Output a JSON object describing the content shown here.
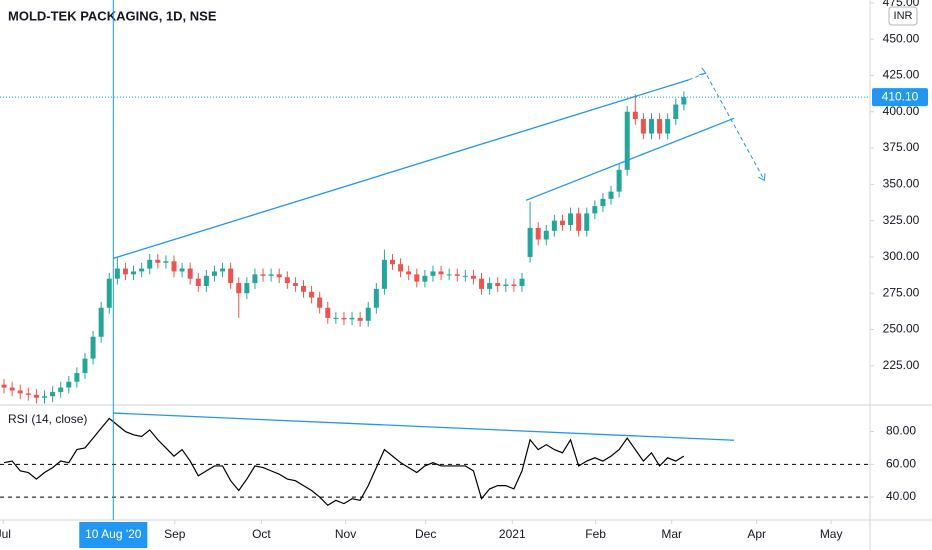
{
  "chart_data": [
    {
      "type": "candlestick",
      "title": "MOLD-TEK PACKAGING, 1D, NSE",
      "currency": "INR",
      "up_color": "#26a69a",
      "down_color": "#ef5350",
      "line_color": "#2196f3",
      "open": [
        212,
        210,
        208,
        206,
        205,
        203,
        204,
        207,
        210,
        214,
        220,
        230,
        245,
        265,
        285,
        292,
        288,
        290,
        292,
        298,
        296,
        297,
        290,
        292,
        285,
        280,
        287,
        290,
        292,
        282,
        275,
        282,
        288,
        287,
        288,
        286,
        282,
        280,
        276,
        272,
        265,
        258,
        258,
        257,
        258,
        256,
        265,
        278,
        298,
        295,
        290,
        288,
        283,
        287,
        290,
        288,
        288,
        287,
        287,
        285,
        278,
        282,
        280,
        281,
        280,
        300,
        320,
        312,
        318,
        325,
        322,
        330,
        318,
        330,
        335,
        340,
        345,
        360,
        400,
        395,
        385,
        395,
        385,
        395,
        405
      ],
      "high": [
        216,
        214,
        212,
        210,
        209,
        208,
        211,
        214,
        218,
        224,
        234,
        249,
        269,
        289,
        300,
        296,
        294,
        296,
        302,
        302,
        301,
        301,
        296,
        296,
        289,
        291,
        294,
        296,
        296,
        286,
        286,
        292,
        292,
        292,
        292,
        290,
        286,
        284,
        280,
        276,
        269,
        262,
        262,
        262,
        262,
        269,
        282,
        305,
        302,
        299,
        294,
        292,
        291,
        294,
        294,
        292,
        292,
        291,
        291,
        289,
        286,
        286,
        285,
        285,
        289,
        338,
        324,
        322,
        329,
        329,
        334,
        334,
        334,
        339,
        344,
        349,
        364,
        404,
        412,
        399,
        399,
        399,
        399,
        409,
        414
      ],
      "low": [
        206,
        204,
        202,
        201,
        199,
        199,
        200,
        203,
        206,
        210,
        216,
        226,
        241,
        261,
        281,
        284,
        284,
        286,
        288,
        292,
        292,
        286,
        286,
        281,
        276,
        276,
        283,
        286,
        278,
        258,
        271,
        278,
        283,
        283,
        282,
        278,
        276,
        272,
        268,
        261,
        254,
        254,
        253,
        253,
        252,
        252,
        261,
        274,
        291,
        286,
        284,
        279,
        279,
        283,
        284,
        284,
        283,
        283,
        281,
        274,
        274,
        276,
        276,
        276,
        276,
        296,
        308,
        308,
        314,
        318,
        318,
        314,
        314,
        326,
        331,
        336,
        341,
        356,
        391,
        381,
        381,
        381,
        381,
        391,
        401
      ],
      "close": [
        210,
        208,
        206,
        205,
        203,
        204,
        207,
        210,
        214,
        220,
        230,
        245,
        265,
        285,
        292,
        288,
        290,
        292,
        298,
        296,
        297,
        290,
        292,
        285,
        280,
        287,
        290,
        292,
        282,
        275,
        282,
        288,
        287,
        288,
        286,
        282,
        280,
        276,
        272,
        265,
        258,
        258,
        257,
        258,
        256,
        265,
        278,
        298,
        295,
        290,
        288,
        283,
        287,
        290,
        288,
        288,
        287,
        287,
        285,
        278,
        282,
        280,
        281,
        280,
        285,
        320,
        312,
        318,
        325,
        322,
        330,
        318,
        330,
        335,
        340,
        345,
        360,
        400,
        395,
        385,
        395,
        385,
        395,
        405,
        410.1
      ],
      "xlim": [
        -0.5,
        107
      ],
      "ylim": [
        198,
        477
      ],
      "yticks": [
        {
          "value": 475,
          "label": "475.00"
        },
        {
          "value": 450,
          "label": "450.00"
        },
        {
          "value": 425,
          "label": "425.00"
        },
        {
          "value": 400,
          "label": "400.00"
        },
        {
          "value": 375,
          "label": "375.00"
        },
        {
          "value": 350,
          "label": "350.00"
        },
        {
          "value": 325,
          "label": "325.00"
        },
        {
          "value": 300,
          "label": "300.00"
        },
        {
          "value": 275,
          "label": "275.00"
        },
        {
          "value": 250,
          "label": "250.00"
        },
        {
          "value": 225,
          "label": "225.00"
        }
      ],
      "last_price": {
        "value": 410.1,
        "label": "410.10"
      },
      "trendlines": [
        {
          "x": [
            13.5,
            84.6
          ],
          "y": [
            299,
            422
          ]
        },
        {
          "x": [
            64.5,
            90.2
          ],
          "y": [
            339,
            395.5
          ]
        }
      ],
      "projection": {
        "x": [
          84.6,
          86.7,
          93.95
        ],
        "y": [
          422,
          426.6,
          352.8
        ]
      }
    },
    {
      "type": "line",
      "title": "RSI (14, close)",
      "color": "#000000",
      "values": [
        61,
        62,
        56,
        55,
        51,
        55,
        58,
        62,
        61,
        69,
        70,
        76,
        82,
        88,
        84,
        80,
        78,
        77,
        81,
        75,
        70,
        65,
        69,
        62,
        53,
        56,
        59,
        59,
        50,
        44,
        51,
        59,
        58,
        56,
        54,
        51,
        50,
        47,
        44,
        40,
        35,
        38,
        36,
        39,
        38,
        47,
        58,
        69,
        65,
        61,
        58,
        55,
        59,
        61,
        59,
        59,
        59,
        59,
        56,
        39,
        45,
        47,
        47,
        45,
        56,
        75,
        69,
        72,
        69,
        67,
        75,
        59,
        62,
        64,
        62,
        65,
        69,
        76,
        69,
        62,
        67,
        59,
        64,
        62,
        65
      ],
      "xlim": [
        -0.5,
        107
      ],
      "ylim": [
        26,
        95
      ],
      "yticks": [
        {
          "value": 80,
          "label": "80.00"
        },
        {
          "value": 60,
          "label": "60.00"
        },
        {
          "value": 40,
          "label": "40.00"
        }
      ],
      "levels": [
        60,
        40
      ],
      "trendline": {
        "x": [
          13.5,
          90.2
        ],
        "y": [
          91.3,
          74.7
        ]
      },
      "crosshair": {
        "value": 13.5,
        "label": "10 Aug '20"
      },
      "xticks": [
        {
          "value": -0.1,
          "label": "Jul"
        },
        {
          "value": 21.1,
          "label": "Sep"
        },
        {
          "value": 31.8,
          "label": "Oct"
        },
        {
          "value": 42.2,
          "label": "Nov"
        },
        {
          "value": 52.1,
          "label": "Dec"
        },
        {
          "value": 62.8,
          "label": "2021"
        },
        {
          "value": 73.1,
          "label": "Feb"
        },
        {
          "value": 82.5,
          "label": "Mar"
        },
        {
          "value": 93,
          "label": "Apr"
        },
        {
          "value": 102.2,
          "label": "May"
        }
      ]
    }
  ]
}
